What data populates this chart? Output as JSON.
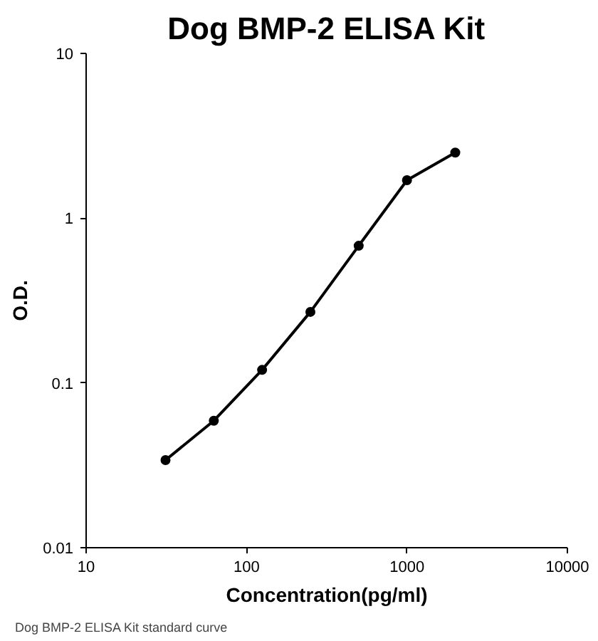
{
  "chart_data": {
    "type": "line",
    "title": "Dog BMP-2 ELISA Kit",
    "xlabel": "Concentration(pg/ml)",
    "ylabel": "O.D.",
    "x": [
      31.25,
      62.5,
      125,
      250,
      500,
      1000,
      2000
    ],
    "series": [
      {
        "color": "#000000",
        "values": [
          0.034,
          0.059,
          0.12,
          0.27,
          0.68,
          1.7,
          2.5
        ]
      }
    ],
    "log": "xy",
    "xlim": [
      10,
      10000
    ],
    "ylim": [
      0.01,
      10
    ],
    "xticks": [
      10,
      100,
      1000,
      10000
    ],
    "yticks": [
      0.01,
      0.1,
      1,
      10
    ],
    "grid": false,
    "marker": "circle",
    "line_style": "solid",
    "annotations": [
      "Dog BMP-2 ELISA Kit standard curve"
    ]
  }
}
